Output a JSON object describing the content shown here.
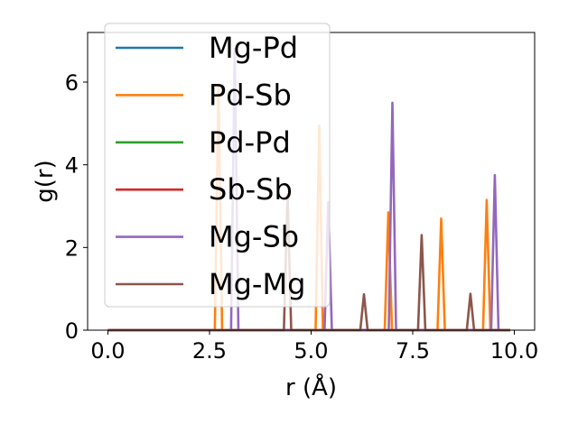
{
  "chart_data": {
    "type": "line",
    "title": "",
    "xlabel": "r (Å)",
    "ylabel": "g(r)",
    "xlim": [
      -0.5,
      10.5
    ],
    "ylim": [
      0,
      7.2
    ],
    "xticks": [
      "0.0",
      "2.5",
      "5.0",
      "7.5",
      "10.0"
    ],
    "xtick_values": [
      0,
      2.5,
      5,
      7.5,
      10
    ],
    "yticks": [
      "0",
      "2",
      "4",
      "6"
    ],
    "ytick_values": [
      0,
      2,
      4,
      6
    ],
    "legend_position": "upper-left",
    "grid": false,
    "r_max": 9.9,
    "series": [
      {
        "name": "Mg-Pd",
        "color": "#1f77b4",
        "peaks": []
      },
      {
        "name": "Pd-Sb",
        "color": "#ff7f0e",
        "peaks": [
          [
            2.72,
            5.9
          ],
          [
            5.2,
            4.95
          ],
          [
            6.9,
            2.85
          ],
          [
            8.2,
            2.7
          ],
          [
            9.32,
            3.15
          ]
        ]
      },
      {
        "name": "Pd-Pd",
        "color": "#2ca02c",
        "peaks": []
      },
      {
        "name": "Sb-Sb",
        "color": "#d62728",
        "peaks": []
      },
      {
        "name": "Mg-Sb",
        "color": "#9467bd",
        "peaks": [
          [
            3.12,
            6.8
          ],
          [
            5.42,
            3.1
          ],
          [
            7.0,
            5.5
          ],
          [
            9.52,
            3.75
          ]
        ]
      },
      {
        "name": "Mg-Mg",
        "color": "#8c564b",
        "peaks": [
          [
            4.42,
            3.3
          ],
          [
            6.3,
            0.87
          ],
          [
            7.72,
            2.3
          ],
          [
            8.92,
            0.88
          ]
        ]
      }
    ]
  }
}
